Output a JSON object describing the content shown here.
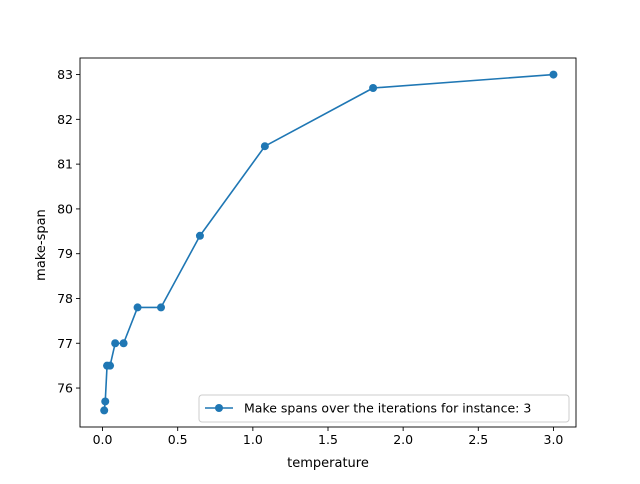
{
  "chart_data": {
    "type": "line",
    "xlabel": "temperature",
    "ylabel": "make-span",
    "xlim": [
      -0.15,
      3.15
    ],
    "ylim": [
      75.13,
      83.37
    ],
    "xticks": [
      0.0,
      0.5,
      1.0,
      1.5,
      2.0,
      2.5,
      3.0
    ],
    "xtick_labels": [
      "0.0",
      "0.5",
      "1.0",
      "1.5",
      "2.0",
      "2.5",
      "3.0"
    ],
    "yticks": [
      76,
      77,
      78,
      79,
      80,
      81,
      82,
      83
    ],
    "ytick_labels": [
      "76",
      "77",
      "78",
      "79",
      "80",
      "81",
      "82",
      "83"
    ],
    "grid": false,
    "legend_position": "lower-right",
    "series": [
      {
        "name": "Make spans over the iterations for instance: 3",
        "color": "#1f77b4",
        "marker": "circle",
        "x": [
          3.0,
          1.8,
          1.08,
          0.648,
          0.389,
          0.233,
          0.14,
          0.084,
          0.05,
          0.03,
          0.018,
          0.011
        ],
        "y": [
          83.0,
          82.7,
          81.4,
          79.4,
          77.8,
          77.8,
          77.0,
          77.0,
          76.5,
          76.5,
          75.7,
          75.5
        ]
      }
    ]
  }
}
